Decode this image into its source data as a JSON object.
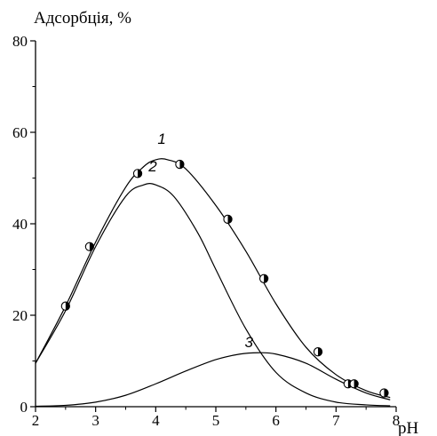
{
  "chart_data": {
    "type": "scatter",
    "ylabel": "Адсорбція, %",
    "xlabel": "pH",
    "xlim": [
      2,
      8
    ],
    "ylim": [
      0,
      80
    ],
    "x_ticks": [
      "2",
      "3",
      "4",
      "5",
      "6",
      "7",
      "8"
    ],
    "y_ticks": [
      "0",
      "20",
      "40",
      "60",
      "80"
    ],
    "grid": false,
    "series": [
      {
        "name": "1",
        "type": "line",
        "color": "#000000",
        "x": [
          2.0,
          2.5,
          3.0,
          3.5,
          3.8,
          4.0,
          4.2,
          4.5,
          5.0,
          5.5,
          6.0,
          6.5,
          7.0,
          7.5,
          7.9
        ],
        "y": [
          9.5,
          22.0,
          36.0,
          48.0,
          52.5,
          54.0,
          54.0,
          52.0,
          44.0,
          34.0,
          22.5,
          13.0,
          7.0,
          3.5,
          2.0
        ]
      },
      {
        "name": "2",
        "type": "line",
        "color": "#000000",
        "x": [
          2.0,
          2.5,
          3.0,
          3.5,
          3.8,
          4.0,
          4.3,
          4.7,
          5.0,
          5.5,
          6.0,
          6.5,
          7.0,
          7.5,
          7.9
        ],
        "y": [
          9.5,
          21.0,
          35.0,
          46.0,
          48.5,
          48.5,
          46.0,
          38.0,
          30.0,
          17.0,
          7.5,
          3.0,
          1.0,
          0.4,
          0.2
        ]
      },
      {
        "name": "3",
        "type": "line",
        "color": "#000000",
        "x": [
          2.0,
          2.5,
          3.0,
          3.5,
          4.0,
          4.5,
          5.0,
          5.4,
          5.7,
          6.0,
          6.5,
          7.0,
          7.5,
          7.9
        ],
        "y": [
          0.1,
          0.3,
          1.0,
          2.5,
          5.0,
          7.8,
          10.3,
          11.5,
          11.8,
          11.5,
          9.5,
          6.0,
          3.0,
          1.5
        ]
      },
      {
        "name": "",
        "type": "scatter",
        "marker": "half-filled-circle",
        "x": [
          2.5,
          2.9,
          3.7,
          4.4,
          5.2,
          5.8,
          6.7,
          7.2,
          7.3,
          7.8
        ],
        "y": [
          22,
          35,
          51,
          53,
          41,
          28,
          12,
          5,
          5,
          3
        ]
      }
    ],
    "annotations": [
      {
        "text": "1",
        "x": 4.1,
        "y": 57.5
      },
      {
        "text": "2",
        "x": 3.95,
        "y": 51.5
      },
      {
        "text": "3",
        "x": 5.55,
        "y": 13.0
      }
    ]
  }
}
